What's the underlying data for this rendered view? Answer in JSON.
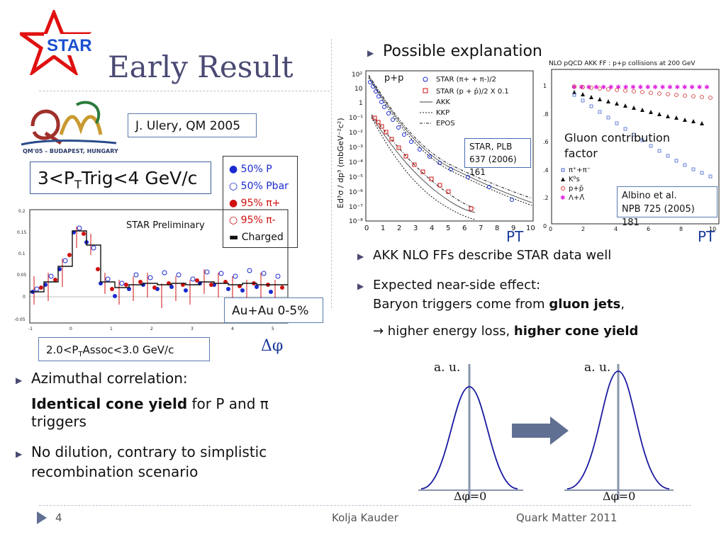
{
  "slide": {
    "title": "Early Result",
    "logo_text": "STAR",
    "qm_logo": {
      "text": "QM'05 – BUDAPEST, HUNGARY"
    },
    "reference": "J. Ulery, QM 2005",
    "trigger_label": {
      "prefix": "3<P",
      "sub": "T",
      "suffix": "Trig<4 GeV/c"
    },
    "assoc_label": {
      "prefix": "2.0<P",
      "sub": "T",
      "suffix": "Assoc<3.0 GeV/c"
    },
    "system_label": "Au+Au 0-5%",
    "plot_label": "STAR Preliminary",
    "dphi_axis": "Δφ",
    "legend": [
      {
        "marker": "●",
        "text": "50% P",
        "color": "#1a2ad0"
      },
      {
        "marker": "○",
        "text": "50% Pbar",
        "color": "#1a2ad0"
      },
      {
        "marker": "●",
        "text": "95% π+",
        "color": "#d01010"
      },
      {
        "marker": "○",
        "text": "95% π-",
        "color": "#d01010"
      },
      {
        "marker": "▬",
        "text": "Charged",
        "color": "#111111"
      }
    ],
    "left_bullets": [
      {
        "line1": "Azimuthal correlation:",
        "bold": "Identical cone yield",
        "rest": " for P and π",
        "line3": "triggers"
      },
      {
        "line1": "No dilution, contrary to simplistic",
        "line2": "recombination scenario"
      }
    ],
    "right_heading": "Possible explanation",
    "right_bullets": [
      {
        "text": "AKK NLO FFs describe STAR data well"
      },
      {
        "line1": "Expected near-side effect:",
        "line2_pre": "Baryon triggers come from ",
        "line2_bold": "gluon jets",
        "line2_post": ",",
        "line3_pre": "→ higher energy loss, ",
        "line3_bold": "higher cone yield"
      }
    ],
    "spectrum_plot": {
      "system": "p+p",
      "legend": [
        "STAR (π+ + π-)/2",
        "STAR (p + p̄)/2 X 0.1",
        "AKK",
        "KKP",
        "EPOS"
      ],
      "ylabel": "Ed³σ / dp³ (mbGeV⁻²c²)",
      "yticks": [
        "10²",
        "10",
        "1",
        "10⁻¹",
        "10⁻²",
        "10⁻³",
        "10⁻⁴",
        "10⁻⁵",
        "10⁻⁶",
        "10⁻⁷",
        "10⁻⁸"
      ],
      "xticks": [
        "0",
        "1",
        "2",
        "3",
        "4",
        "5",
        "6",
        "7",
        "8",
        "9",
        "10"
      ],
      "xlabel": "PT",
      "ref": "STAR, PLB 637 (2006) 161"
    },
    "gluon_plot": {
      "title": "NLO pQCD AKK FF : p+p collisions at 200 GeV",
      "annotation": "Gluon contribution factor",
      "legend": [
        "π⁺+π⁻",
        "K⁰s",
        "p+p̄",
        "Λ+Λ̄"
      ],
      "yticks": [
        "1",
        ".8",
        ".6",
        ".4",
        ".2",
        "0"
      ],
      "xticks": [
        "0",
        "2",
        "4",
        "6",
        "8",
        "10"
      ],
      "xlabel": "PT",
      "ref_line1": "Albino et al.",
      "ref_line2": "NPB 725 (2005) 181"
    },
    "corr_axis": {
      "yticks": [
        "0.2",
        "0.15",
        "0.1",
        "0.05",
        "0",
        "-0.05"
      ],
      "xticks": [
        "-1",
        "0",
        "1",
        "2",
        "3",
        "4",
        "5"
      ]
    },
    "gauss_left": {
      "ylabel": "a. u.",
      "xlabel": "Δφ=0"
    },
    "gauss_right": {
      "ylabel": "a. u.",
      "xlabel": "Δφ=0"
    },
    "footer": {
      "page": "4",
      "author": "Kolja Kauder",
      "event": "Quark Matter 2011"
    }
  }
}
